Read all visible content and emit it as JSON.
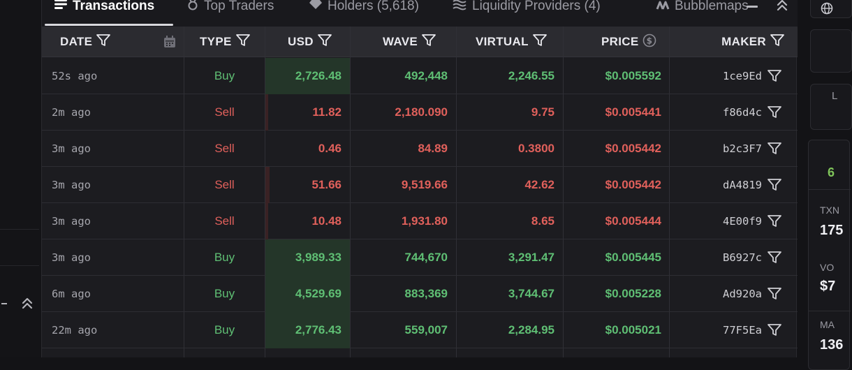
{
  "tabs": [
    {
      "label": "Transactions",
      "icon": "list-icon",
      "active": true
    },
    {
      "label": "Top Traders",
      "icon": "medal-icon",
      "active": false
    },
    {
      "label": "Holders (5,618)",
      "icon": "diamond-icon",
      "active": false
    },
    {
      "label": "Liquidity Providers (4)",
      "icon": "waves-icon",
      "active": false
    },
    {
      "label": "Bubblemaps",
      "icon": "bubblemaps-icon",
      "active": false
    }
  ],
  "columns": {
    "date": "DATE",
    "type": "TYPE",
    "usd": "USD",
    "wave": "WAVE",
    "virtual": "VIRTUAL",
    "price": "PRICE",
    "maker": "MAKER"
  },
  "rows": [
    {
      "date": "52s ago",
      "type": "Buy",
      "usd": "2,726.48",
      "wave": "492,448",
      "virtual": "2,246.55",
      "price": "$0.005592",
      "maker": "1ce9Ed",
      "usd_fill": 1.0
    },
    {
      "date": "2m ago",
      "type": "Sell",
      "usd": "11.82",
      "wave": "2,180.090",
      "virtual": "9.75",
      "price": "$0.005441",
      "maker": "f86d4c",
      "usd_fill": 0.02
    },
    {
      "date": "3m ago",
      "type": "Sell",
      "usd": "0.46",
      "wave": "84.89",
      "virtual": "0.3800",
      "price": "$0.005442",
      "maker": "b2c3F7",
      "usd_fill": 0.0
    },
    {
      "date": "3m ago",
      "type": "Sell",
      "usd": "51.66",
      "wave": "9,519.66",
      "virtual": "42.62",
      "price": "$0.005442",
      "maker": "dA4819",
      "usd_fill": 0.05
    },
    {
      "date": "3m ago",
      "type": "Sell",
      "usd": "10.48",
      "wave": "1,931.80",
      "virtual": "8.65",
      "price": "$0.005444",
      "maker": "4E00f9",
      "usd_fill": 0.02
    },
    {
      "date": "3m ago",
      "type": "Buy",
      "usd": "3,989.33",
      "wave": "744,670",
      "virtual": "3,291.47",
      "price": "$0.005445",
      "maker": "B6927c",
      "usd_fill": 1.0
    },
    {
      "date": "6m ago",
      "type": "Buy",
      "usd": "4,529.69",
      "wave": "883,369",
      "virtual": "3,744.67",
      "price": "$0.005228",
      "maker": "Ad920a",
      "usd_fill": 1.0
    },
    {
      "date": "22m ago",
      "type": "Buy",
      "usd": "2,776.43",
      "wave": "559,007",
      "virtual": "2,284.95",
      "price": "$0.005021",
      "maker": "77F5Ea",
      "usd_fill": 1.0
    }
  ],
  "right_panel": {
    "box_letter": "L",
    "green_value": "6",
    "txns_label": "TXN",
    "txns_value": "175",
    "volume_label": "VO",
    "volume_value": "$7",
    "makers_label": "MA",
    "makers_value": "136"
  },
  "colors": {
    "buy": "#5fbf74",
    "sell": "#e0605b",
    "buy_bg": "#243629",
    "sell_bg": "#3a2224"
  }
}
